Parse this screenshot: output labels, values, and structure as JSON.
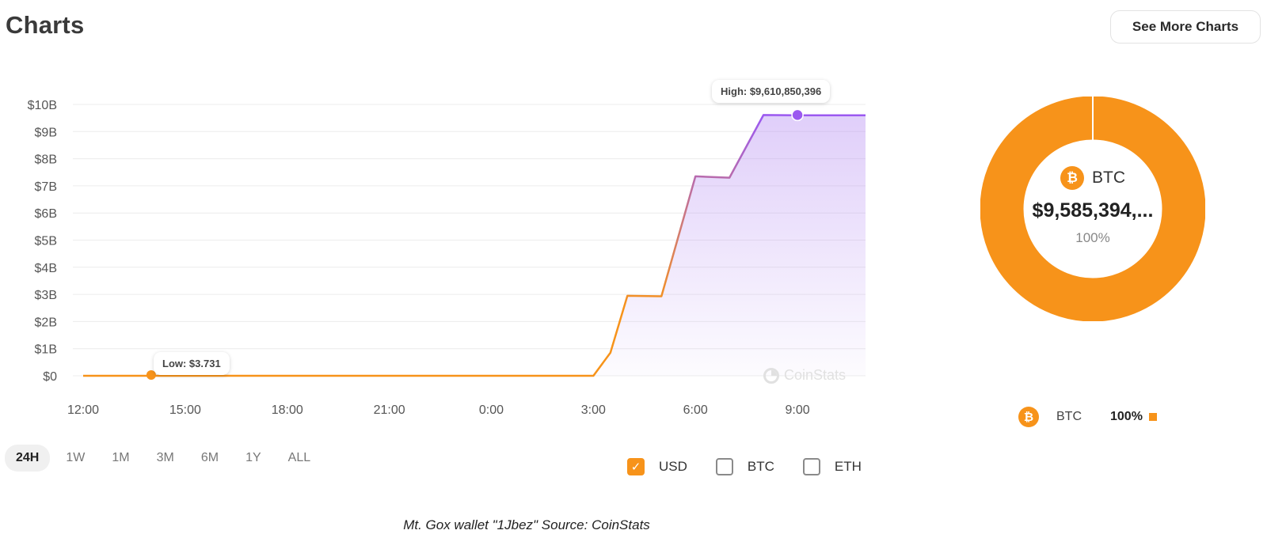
{
  "header": {
    "title": "Charts",
    "see_more_label": "See More Charts"
  },
  "chart_data": {
    "type": "area",
    "ylabel_ticks": [
      "$0",
      "$1B",
      "$2B",
      "$3B",
      "$4B",
      "$5B",
      "$6B",
      "$7B",
      "$8B",
      "$9B",
      "$10B"
    ],
    "y_tick_values_billion": [
      0,
      1,
      2,
      3,
      4,
      5,
      6,
      7,
      8,
      9,
      10
    ],
    "ylim_billion": [
      0,
      10
    ],
    "x_tick_labels": [
      "12:00",
      "15:00",
      "18:00",
      "21:00",
      "0:00",
      "3:00",
      "6:00",
      "9:00"
    ],
    "x_tick_hours": [
      0,
      3,
      6,
      9,
      12,
      15,
      18,
      21
    ],
    "xlim_hours": [
      0,
      23
    ],
    "grid": true,
    "series": [
      {
        "x_hours": [
          0,
          14,
          15,
          15.5,
          16,
          17,
          18,
          19,
          20,
          21,
          22,
          23
        ],
        "y_billion": [
          0,
          0,
          0,
          0.85,
          2.95,
          2.93,
          7.35,
          7.3,
          9.61,
          9.6,
          9.6,
          9.6
        ]
      }
    ],
    "high_label": "High: $9,610,850,396",
    "high_x_hours": 21,
    "high_y_billion": 9.61,
    "low_label": "Low: $3.731",
    "low_x_hours": 2,
    "low_y_billion": 0,
    "colors": {
      "line_low": "#f7931a",
      "line_high": "#9b59f0",
      "fill": "#b58cf2"
    }
  },
  "watermark": "CoinStats",
  "time_ranges": [
    {
      "label": "24H",
      "active": true
    },
    {
      "label": "1W",
      "active": false
    },
    {
      "label": "1M",
      "active": false
    },
    {
      "label": "3M",
      "active": false
    },
    {
      "label": "6M",
      "active": false
    },
    {
      "label": "1Y",
      "active": false
    },
    {
      "label": "ALL",
      "active": false
    }
  ],
  "currencies": [
    {
      "label": "USD",
      "checked": true
    },
    {
      "label": "BTC",
      "checked": false
    },
    {
      "label": "ETH",
      "checked": false
    }
  ],
  "allocation": {
    "coin_symbol_glyph": "₿",
    "coin_name": "BTC",
    "value": "$9,585,394,...",
    "percent": "100%",
    "legend": [
      {
        "name": "BTC",
        "percent": "100%",
        "color": "#f7931a"
      }
    ],
    "ring_color": "#f7931a"
  },
  "caption": "Mt. Gox wallet \"1Jbez\" Source: CoinStats"
}
